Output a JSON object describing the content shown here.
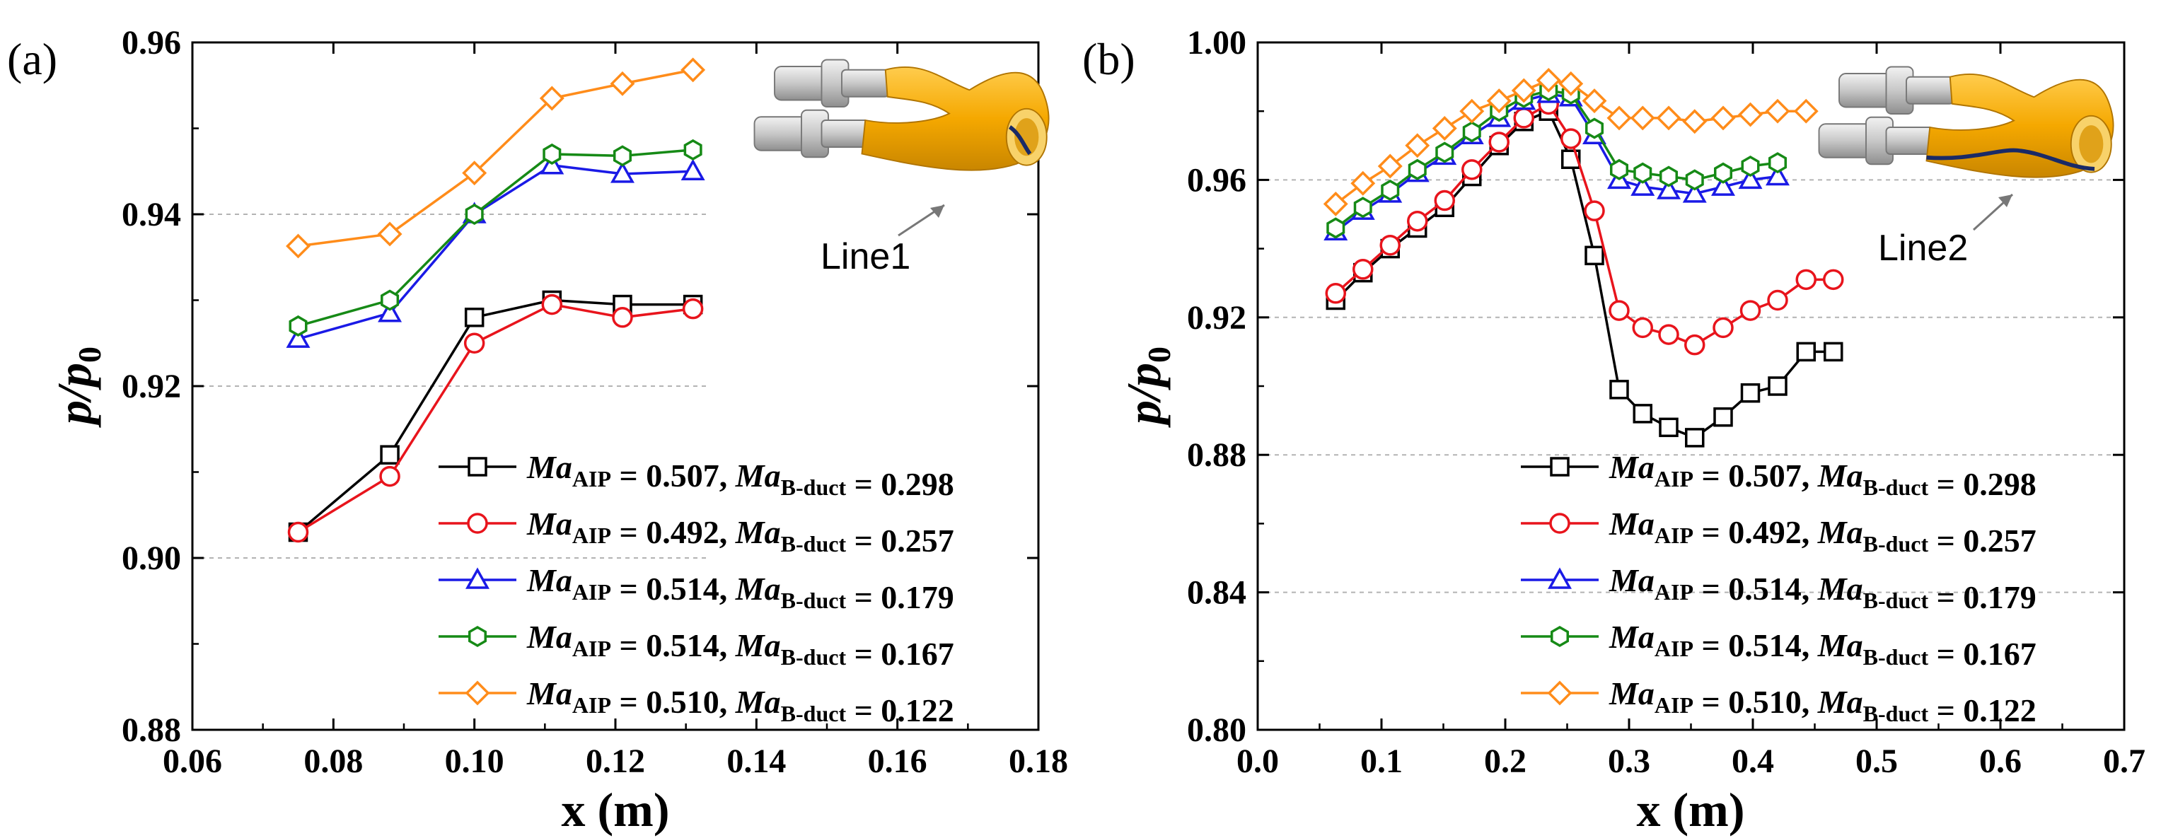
{
  "chart_data": [
    {
      "type": "line",
      "panel_label": "(a)",
      "xlabel": "x (m)",
      "ylabel": "p/p0",
      "xlim": [
        0.06,
        0.18
      ],
      "ylim": [
        0.88,
        0.96
      ],
      "xticks": [
        0.06,
        0.08,
        0.1,
        0.12,
        0.14,
        0.16,
        0.18
      ],
      "yticks": [
        0.88,
        0.9,
        0.92,
        0.94,
        0.96
      ],
      "xtick_labels": [
        "0.06",
        "0.08",
        "0.10",
        "0.12",
        "0.14",
        "0.16",
        "0.18"
      ],
      "ytick_labels": [
        "0.88",
        "0.90",
        "0.92",
        "0.94",
        "0.96"
      ],
      "ygrid": [
        0.9,
        0.92,
        0.94
      ],
      "inset_label": "Line1",
      "legend_position": "bottom-right",
      "x": [
        0.075,
        0.088,
        0.1,
        0.111,
        0.121,
        0.131
      ],
      "series": [
        {
          "name": "Ma_AIP = 0.507, Ma_B-duct = 0.298",
          "ma_aip": "0.507",
          "ma_bduct": "0.298",
          "color": "#000000",
          "marker": "square",
          "values": [
            0.903,
            0.912,
            0.928,
            0.93,
            0.9295,
            0.9295
          ]
        },
        {
          "name": "Ma_AIP = 0.492, Ma_B-duct = 0.257",
          "ma_aip": "0.492",
          "ma_bduct": "0.257",
          "color": "#e8141c",
          "marker": "circle",
          "values": [
            0.903,
            0.9095,
            0.925,
            0.9295,
            0.928,
            0.929
          ]
        },
        {
          "name": "Ma_AIP = 0.514, Ma_B-duct = 0.179",
          "ma_aip": "0.514",
          "ma_bduct": "0.179",
          "color": "#1a1ae6",
          "marker": "triangle",
          "values": [
            0.9255,
            0.9285,
            0.94,
            0.9457,
            0.9447,
            0.945
          ]
        },
        {
          "name": "Ma_AIP = 0.514, Ma_B-duct = 0.167",
          "ma_aip": "0.514",
          "ma_bduct": "0.167",
          "color": "#168a16",
          "marker": "hexagon",
          "values": [
            0.927,
            0.93,
            0.94,
            0.947,
            0.9468,
            0.9475
          ]
        },
        {
          "name": "Ma_AIP = 0.510, Ma_B-duct = 0.122",
          "ma_aip": "0.510",
          "ma_bduct": "0.122",
          "color": "#ff8c1a",
          "marker": "diamond",
          "values": [
            0.9363,
            0.9377,
            0.9448,
            0.9535,
            0.9552,
            0.9568
          ]
        }
      ]
    },
    {
      "type": "line",
      "panel_label": "(b)",
      "xlabel": "x (m)",
      "ylabel": "p/p0",
      "xlim": [
        0.0,
        0.7
      ],
      "ylim": [
        0.8,
        1.0
      ],
      "xticks": [
        0.0,
        0.1,
        0.2,
        0.3,
        0.4,
        0.5,
        0.6,
        0.7
      ],
      "yticks": [
        0.8,
        0.84,
        0.88,
        0.92,
        0.96,
        1.0
      ],
      "xtick_labels": [
        "0.0",
        "0.1",
        "0.2",
        "0.3",
        "0.4",
        "0.5",
        "0.6",
        "0.7"
      ],
      "ytick_labels": [
        "0.80",
        "0.84",
        "0.88",
        "0.92",
        "0.96",
        "1.00"
      ],
      "ygrid": [
        0.84,
        0.88,
        0.92,
        0.96
      ],
      "inset_label": "Line2",
      "legend_position": "bottom-right",
      "series": [
        {
          "name": "Ma_AIP = 0.507, Ma_B-duct = 0.298",
          "ma_aip": "0.507",
          "ma_bduct": "0.298",
          "color": "#000000",
          "marker": "square",
          "x": [
            0.063,
            0.085,
            0.107,
            0.129,
            0.151,
            0.173,
            0.195,
            0.215,
            0.235,
            0.253,
            0.272,
            0.292,
            0.311,
            0.332,
            0.353,
            0.376,
            0.398,
            0.42,
            0.443,
            0.465
          ],
          "values": [
            0.925,
            0.933,
            0.94,
            0.946,
            0.952,
            0.961,
            0.97,
            0.977,
            0.98,
            0.966,
            0.938,
            0.899,
            0.892,
            0.888,
            0.885,
            0.891,
            0.898,
            0.9,
            0.91,
            0.91
          ]
        },
        {
          "name": "Ma_AIP = 0.492, Ma_B-duct = 0.257",
          "ma_aip": "0.492",
          "ma_bduct": "0.257",
          "color": "#e8141c",
          "marker": "circle",
          "x": [
            0.063,
            0.085,
            0.107,
            0.129,
            0.151,
            0.173,
            0.195,
            0.215,
            0.235,
            0.253,
            0.272,
            0.292,
            0.311,
            0.332,
            0.353,
            0.376,
            0.398,
            0.42,
            0.443,
            0.465
          ],
          "values": [
            0.927,
            0.934,
            0.941,
            0.948,
            0.954,
            0.963,
            0.971,
            0.978,
            0.982,
            0.972,
            0.951,
            0.922,
            0.917,
            0.915,
            0.912,
            0.917,
            0.922,
            0.925,
            0.931,
            0.931
          ]
        },
        {
          "name": "Ma_AIP = 0.514, Ma_B-duct = 0.179",
          "ma_aip": "0.514",
          "ma_bduct": "0.179",
          "color": "#1a1ae6",
          "marker": "triangle",
          "x": [
            0.063,
            0.085,
            0.107,
            0.129,
            0.151,
            0.173,
            0.195,
            0.215,
            0.235,
            0.253,
            0.272,
            0.292,
            0.311,
            0.332,
            0.353,
            0.376,
            0.398,
            0.42
          ],
          "values": [
            0.945,
            0.951,
            0.956,
            0.962,
            0.967,
            0.973,
            0.978,
            0.983,
            0.985,
            0.984,
            0.973,
            0.96,
            0.958,
            0.957,
            0.956,
            0.958,
            0.96,
            0.961
          ]
        },
        {
          "name": "Ma_AIP = 0.514, Ma_B-duct = 0.167",
          "ma_aip": "0.514",
          "ma_bduct": "0.167",
          "color": "#168a16",
          "marker": "hexagon",
          "x": [
            0.063,
            0.085,
            0.107,
            0.129,
            0.151,
            0.173,
            0.195,
            0.215,
            0.235,
            0.253,
            0.272,
            0.292,
            0.311,
            0.332,
            0.353,
            0.376,
            0.398,
            0.42
          ],
          "values": [
            0.946,
            0.952,
            0.957,
            0.963,
            0.968,
            0.974,
            0.98,
            0.984,
            0.986,
            0.985,
            0.975,
            0.963,
            0.962,
            0.961,
            0.96,
            0.962,
            0.964,
            0.965
          ]
        },
        {
          "name": "Ma_AIP = 0.510, Ma_B-duct = 0.122",
          "ma_aip": "0.510",
          "ma_bduct": "0.122",
          "color": "#ff8c1a",
          "marker": "diamond",
          "x": [
            0.063,
            0.085,
            0.107,
            0.129,
            0.151,
            0.173,
            0.195,
            0.215,
            0.235,
            0.253,
            0.272,
            0.292,
            0.311,
            0.332,
            0.353,
            0.376,
            0.398,
            0.42,
            0.443
          ],
          "values": [
            0.953,
            0.959,
            0.964,
            0.97,
            0.975,
            0.98,
            0.983,
            0.986,
            0.989,
            0.988,
            0.983,
            0.978,
            0.978,
            0.978,
            0.977,
            0.978,
            0.979,
            0.98,
            0.98
          ]
        }
      ]
    }
  ]
}
